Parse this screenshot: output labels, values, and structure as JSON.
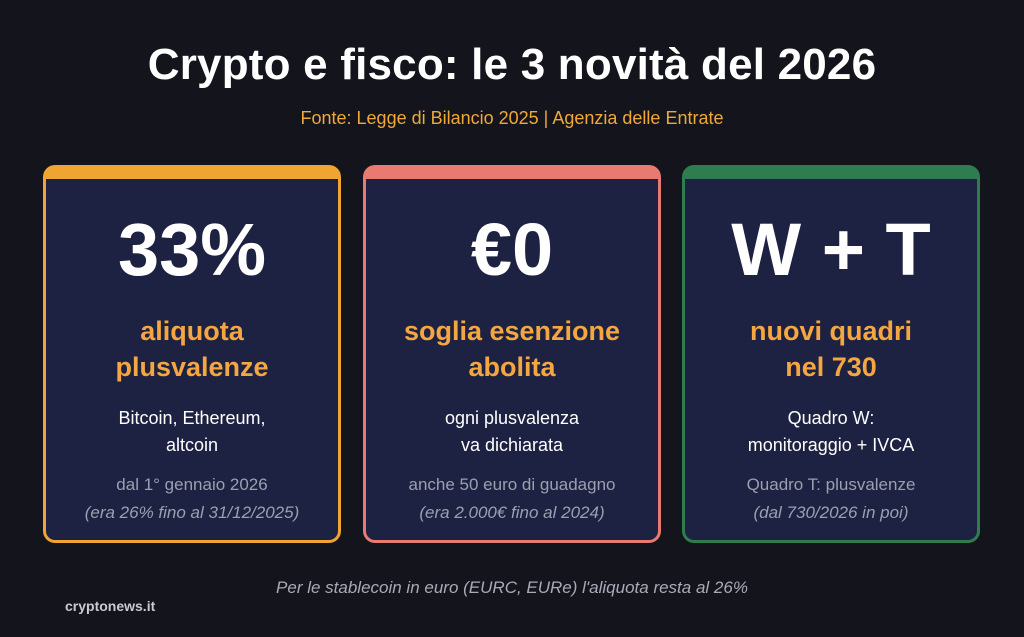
{
  "header": {
    "title": "Crypto e fisco: le 3 novità del 2026",
    "source": "Fonte: Legge di Bilancio 2025 | Agenzia delle Entrate"
  },
  "cards": [
    {
      "value": "33%",
      "label_line1": "aliquota",
      "label_line2": "plusvalenze",
      "desc_line1": "Bitcoin, Ethereum,",
      "desc_line2": "altcoin",
      "note": "dal 1° gennaio 2026",
      "note_italic": "(era 26% fino al 31/12/2025)",
      "accent": "#f0a432"
    },
    {
      "value": "€0",
      "label_line1": "soglia esenzione",
      "label_line2": "abolita",
      "desc_line1": "ogni plusvalenza",
      "desc_line2": "va dichiarata",
      "note": "anche 50 euro di guadagno",
      "note_italic": "(era 2.000€ fino al 2024)",
      "accent": "#e97a72"
    },
    {
      "value": "W + T",
      "label_line1": "nuovi quadri",
      "label_line2": "nel 730",
      "desc_line1": "Quadro W:",
      "desc_line2": "monitoraggio + IVCA",
      "note": "Quadro T: plusvalenze",
      "note_italic": "(dal 730/2026 in poi)",
      "accent": "#2f7d4f"
    }
  ],
  "footer": {
    "note": "Per le stablecoin in euro (EURC, EURe) l'aliquota resta al 26%",
    "brand": "cryptonews.it"
  },
  "colors": {
    "background": "#14151c",
    "card_background": "#1e2242",
    "highlight": "#f4a640"
  }
}
